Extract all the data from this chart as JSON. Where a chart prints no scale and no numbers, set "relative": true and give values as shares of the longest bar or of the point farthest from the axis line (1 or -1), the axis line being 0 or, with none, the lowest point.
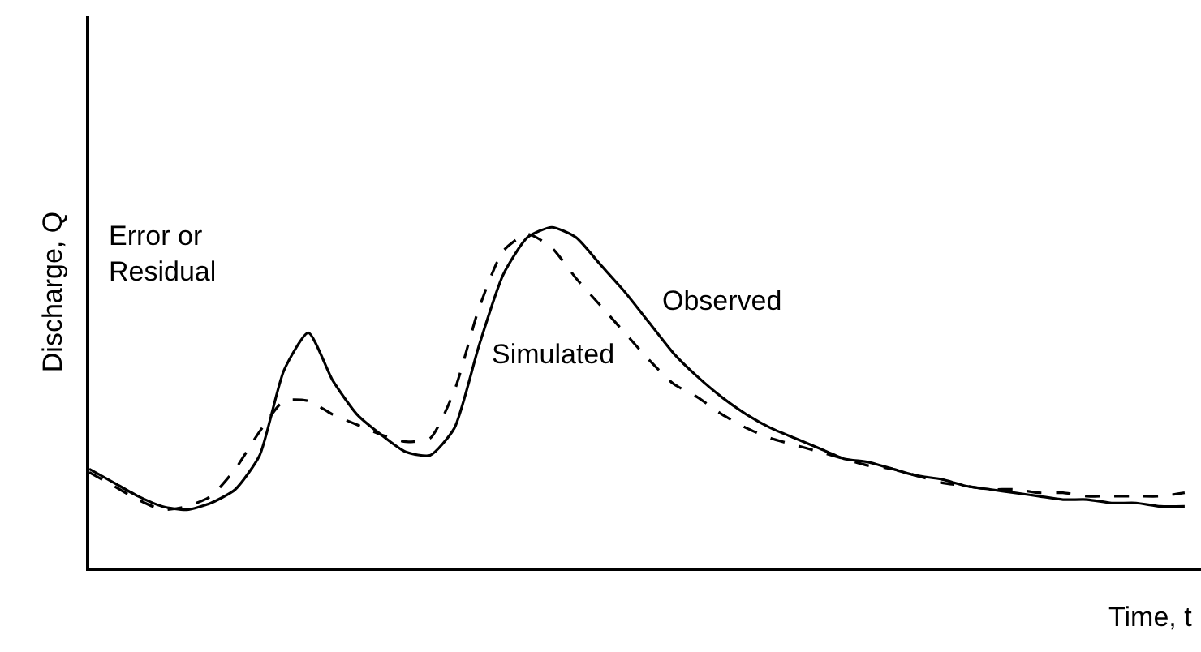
{
  "chart_data": {
    "type": "line",
    "relative": true,
    "xlabel": "Time, t",
    "ylabel": "Discharge, Q",
    "categories": [
      null,
      null,
      null,
      null,
      null,
      null,
      null,
      null,
      null,
      null,
      null,
      null,
      null,
      null,
      null,
      null,
      null,
      null,
      null,
      null,
      null,
      null,
      null,
      null,
      null,
      null,
      null,
      null,
      null,
      null,
      null,
      null,
      null,
      null,
      null,
      null,
      null,
      null,
      null,
      null,
      null,
      null,
      null,
      null,
      null,
      null
    ],
    "series": [
      {
        "name": "Observed",
        "color": "#000000",
        "line_style": "solid",
        "values": [
          0.29,
          0.25,
          0.21,
          0.18,
          0.17,
          0.19,
          0.23,
          0.33,
          0.58,
          0.69,
          0.55,
          0.45,
          0.39,
          0.34,
          0.33,
          0.41,
          0.65,
          0.86,
          0.97,
          1.0,
          0.97,
          0.89,
          0.81,
          0.72,
          0.63,
          0.56,
          0.5,
          0.45,
          0.41,
          0.38,
          0.35,
          0.32,
          0.31,
          0.29,
          0.27,
          0.26,
          0.24,
          0.23,
          0.22,
          0.21,
          0.2,
          0.2,
          0.19,
          0.19,
          0.18,
          0.18
        ]
      },
      {
        "name": "Simulated",
        "color": "#000000",
        "line_style": "dashed",
        "values": [
          0.28,
          0.24,
          0.2,
          0.17,
          0.18,
          0.21,
          0.29,
          0.4,
          0.49,
          0.49,
          0.45,
          0.42,
          0.39,
          0.37,
          0.38,
          0.52,
          0.76,
          0.93,
          0.98,
          0.94,
          0.85,
          0.77,
          0.69,
          0.61,
          0.54,
          0.5,
          0.45,
          0.41,
          0.38,
          0.36,
          0.34,
          0.32,
          0.3,
          0.29,
          0.27,
          0.25,
          0.24,
          0.23,
          0.23,
          0.22,
          0.22,
          0.21,
          0.21,
          0.21,
          0.21,
          0.22
        ]
      }
    ],
    "annotations": [
      "Error or\nResidual"
    ],
    "legend": false,
    "marker": "none"
  }
}
